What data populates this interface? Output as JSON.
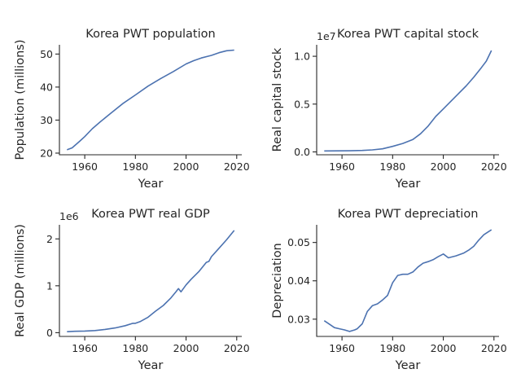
{
  "chart_data": [
    {
      "id": "population",
      "type": "line",
      "title": "Korea PWT population",
      "xlabel": "Year",
      "ylabel": "Population (millions)",
      "offset_label": "",
      "xlim": [
        1950,
        2022
      ],
      "ylim": [
        19.5,
        52.8
      ],
      "xticks": [
        1960,
        1980,
        2000,
        2020
      ],
      "yticks": [
        20,
        30,
        40,
        50
      ],
      "ytick_labels": [
        "20",
        "30",
        "40",
        "50"
      ],
      "x": [
        1953,
        1955,
        1958,
        1960,
        1963,
        1966,
        1970,
        1975,
        1980,
        1985,
        1990,
        1995,
        2000,
        2003,
        2006,
        2010,
        2013,
        2016,
        2019
      ],
      "y": [
        21.0,
        21.6,
        23.6,
        25.0,
        27.4,
        29.4,
        31.9,
        35.0,
        37.6,
        40.3,
        42.6,
        44.7,
        47.0,
        48.0,
        48.8,
        49.6,
        50.4,
        51.0,
        51.2
      ]
    },
    {
      "id": "capital",
      "type": "line",
      "title": "Korea PWT capital stock",
      "xlabel": "Year",
      "ylabel": "Real capital stock",
      "offset_label": "1e7",
      "xlim": [
        1950,
        2022
      ],
      "ylim": [
        -0.03,
        1.12
      ],
      "xticks": [
        1960,
        1980,
        2000,
        2020
      ],
      "yticks": [
        0.0,
        0.5,
        1.0
      ],
      "ytick_labels": [
        "0.0",
        "0.5",
        "1.0"
      ],
      "x": [
        1953,
        1958,
        1963,
        1968,
        1972,
        1976,
        1980,
        1984,
        1988,
        1991,
        1994,
        1997,
        2000,
        2003,
        2006,
        2009,
        2012,
        2015,
        2017,
        2019
      ],
      "y": [
        0.01,
        0.011,
        0.012,
        0.015,
        0.021,
        0.032,
        0.058,
        0.088,
        0.13,
        0.19,
        0.27,
        0.37,
        0.45,
        0.53,
        0.61,
        0.69,
        0.78,
        0.88,
        0.95,
        1.06
      ]
    },
    {
      "id": "gdp",
      "type": "line",
      "title": "Korea PWT real GDP",
      "xlabel": "Year",
      "ylabel": "Real GDP (millions)",
      "offset_label": "1e6",
      "xlim": [
        1950,
        2022
      ],
      "ylim": [
        -0.08,
        2.3
      ],
      "xticks": [
        1960,
        1980,
        2000,
        2020
      ],
      "yticks": [
        0,
        1,
        2
      ],
      "ytick_labels": [
        "0",
        "1",
        "2"
      ],
      "x": [
        1953,
        1956,
        1960,
        1964,
        1968,
        1972,
        1976,
        1979,
        1980,
        1982,
        1985,
        1988,
        1991,
        1994,
        1996,
        1997,
        1998,
        2000,
        2002,
        2005,
        2008,
        2009,
        2010,
        2013,
        2016,
        2019
      ],
      "y": [
        0.02,
        0.03,
        0.035,
        0.045,
        0.07,
        0.1,
        0.15,
        0.2,
        0.2,
        0.24,
        0.33,
        0.46,
        0.58,
        0.74,
        0.87,
        0.94,
        0.87,
        1.02,
        1.14,
        1.3,
        1.5,
        1.52,
        1.62,
        1.8,
        1.98,
        2.18
      ]
    },
    {
      "id": "depreciation",
      "type": "line",
      "title": "Korea PWT depreciation",
      "xlabel": "Year",
      "ylabel": "Depreciation",
      "offset_label": "",
      "xlim": [
        1950,
        2022
      ],
      "ylim": [
        0.0255,
        0.0546
      ],
      "xticks": [
        1960,
        1980,
        2000,
        2020
      ],
      "yticks": [
        0.03,
        0.04,
        0.05
      ],
      "ytick_labels": [
        "0.03",
        "0.04",
        "0.05"
      ],
      "x": [
        1953,
        1955,
        1957,
        1959,
        1961,
        1963,
        1965,
        1966,
        1968,
        1970,
        1972,
        1974,
        1976,
        1978,
        1980,
        1982,
        1984,
        1986,
        1988,
        1990,
        1992,
        1994,
        1996,
        1998,
        2000,
        2002,
        2005,
        2008,
        2010,
        2012,
        2014,
        2016,
        2019
      ],
      "y": [
        0.0296,
        0.0287,
        0.0278,
        0.0275,
        0.0272,
        0.0268,
        0.0272,
        0.0275,
        0.0288,
        0.032,
        0.0335,
        0.034,
        0.035,
        0.0362,
        0.0395,
        0.0414,
        0.0417,
        0.0417,
        0.0423,
        0.0436,
        0.0446,
        0.045,
        0.0455,
        0.0463,
        0.047,
        0.046,
        0.0465,
        0.0472,
        0.048,
        0.049,
        0.0506,
        0.052,
        0.0533
      ]
    }
  ]
}
